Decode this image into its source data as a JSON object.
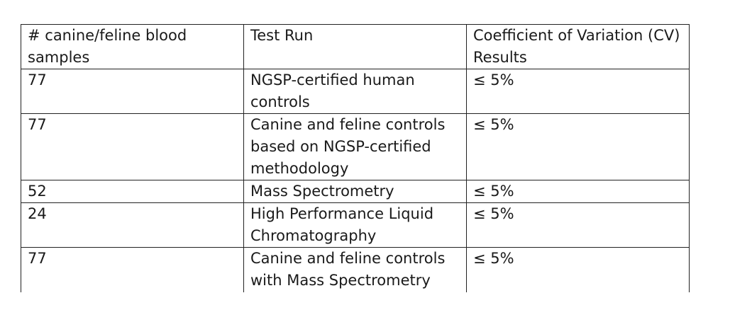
{
  "table": {
    "columns": [
      "# canine/feline blood samples",
      "Test Run",
      "Coefficient of Variation (CV) Results"
    ],
    "rows": [
      [
        "77",
        "NGSP-certified human controls",
        "≤ 5%"
      ],
      [
        "77",
        "Canine and feline controls based on NGSP-certified methodology",
        "≤ 5%"
      ],
      [
        "52",
        "Mass Spectrometry",
        "≤ 5%"
      ],
      [
        "24",
        "High Performance Liquid Chromatography",
        "≤ 5%"
      ],
      [
        "77",
        "Canine and feline controls with Mass Spectrometry",
        "≤ 5%"
      ]
    ]
  }
}
